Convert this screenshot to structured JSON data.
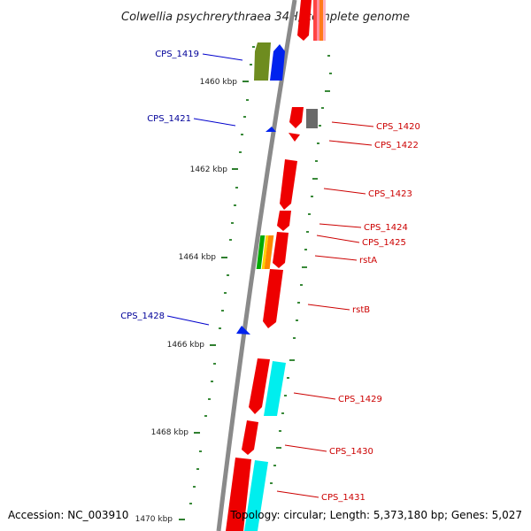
{
  "title": "Colwellia psychrerythraea 34H, complete genome",
  "accession": "Accession: NC_003910",
  "topology": "Topology: circular; Length: 5,373,180 bp; Genes: 5,027",
  "colors": {
    "backbone": "#888888",
    "minor_tick": "#3a8a3a",
    "forward_label": "#cc0000",
    "reverse_label": "#000099"
  },
  "ticks": [
    {
      "label": "1460 kbp"
    },
    {
      "label": "1462 kbp"
    },
    {
      "label": "1464 kbp"
    },
    {
      "label": "1466 kbp"
    },
    {
      "label": "1468 kbp"
    },
    {
      "label": "1470 kbp"
    }
  ],
  "gene_labels": [
    {
      "text": "CPS_1419",
      "strand": "reverse"
    },
    {
      "text": "CPS_1421",
      "strand": "reverse"
    },
    {
      "text": "CPS_1428",
      "strand": "reverse"
    },
    {
      "text": "CPS_1420",
      "strand": "forward"
    },
    {
      "text": "CPS_1422",
      "strand": "forward"
    },
    {
      "text": "CPS_1423",
      "strand": "forward"
    },
    {
      "text": "CPS_1424",
      "strand": "forward"
    },
    {
      "text": "CPS_1425",
      "strand": "forward"
    },
    {
      "text": "rstA",
      "strand": "forward"
    },
    {
      "text": "rstB",
      "strand": "forward"
    },
    {
      "text": "CPS_1429",
      "strand": "forward"
    },
    {
      "text": "CPS_1430",
      "strand": "forward"
    },
    {
      "text": "CPS_1431",
      "strand": "forward"
    }
  ]
}
